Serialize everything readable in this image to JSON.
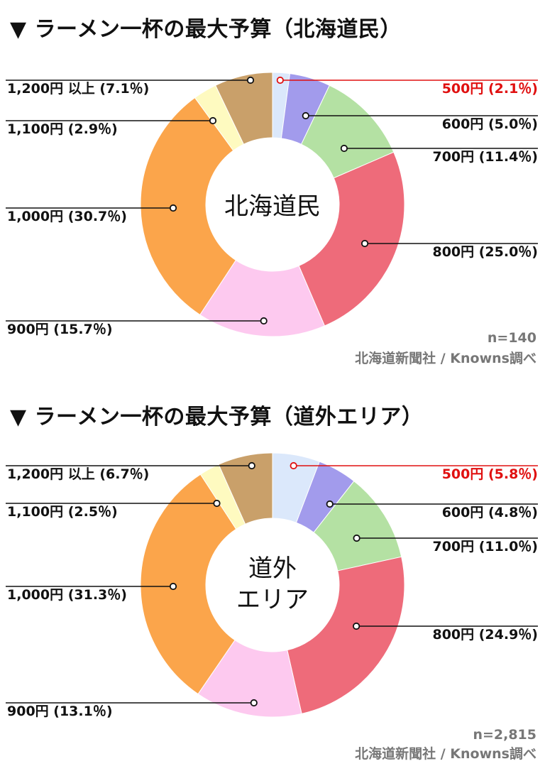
{
  "charts": [
    {
      "title": "▼ ラーメン一杯の最大予算（北海道民）",
      "center_lines": [
        "北海道民"
      ],
      "sample_size": "n=140",
      "source": "北海道新聞社 / Knowns調べ"
    },
    {
      "title": "▼ ラーメン一杯の最大予算（道外エリア）",
      "center_lines": [
        "道外",
        "エリア"
      ],
      "sample_size": "n=2,815",
      "source": "北海道新聞社 / Knowns調べ"
    }
  ],
  "chart_data": [
    {
      "type": "pie",
      "variant": "donut",
      "title": "▼ ラーメン一杯の最大予算（北海道民）",
      "center_label": "北海道民",
      "start": "12 o'clock, clockwise",
      "highlight_color": "#e01010",
      "slices": [
        {
          "category": "500円",
          "value": 2.1,
          "label": "500円 (2.1％)",
          "color": "#dbe8fb",
          "highlight": true
        },
        {
          "category": "600円",
          "value": 5.0,
          "label": "600円 (5.0％)",
          "color": "#a29bec"
        },
        {
          "category": "700円",
          "value": 11.4,
          "label": "700円 (11.4％)",
          "color": "#b4e1a3"
        },
        {
          "category": "800円",
          "value": 25.0,
          "label": "800円 (25.0％)",
          "color": "#ee6b7a"
        },
        {
          "category": "900円",
          "value": 15.7,
          "label": "900円 (15.7％)",
          "color": "#fdc9ef"
        },
        {
          "category": "1,000円",
          "value": 30.7,
          "label": "1,000円 (30.7％)",
          "color": "#fba54b"
        },
        {
          "category": "1,100円",
          "value": 2.9,
          "label": "1,100円 (2.9％)",
          "color": "#fefac0"
        },
        {
          "category": "1,200円 以上",
          "value": 7.1,
          "label": "1,200円 以上 (7.1％)",
          "color": "#c9a06a"
        }
      ],
      "annotations": [
        "n=140",
        "北海道新聞社 / Knowns調べ"
      ]
    },
    {
      "type": "pie",
      "variant": "donut",
      "title": "▼ ラーメン一杯の最大予算（道外エリア）",
      "center_label": "道外 エリア",
      "start": "12 o'clock, clockwise",
      "highlight_color": "#e01010",
      "slices": [
        {
          "category": "500円",
          "value": 5.8,
          "label": "500円 (5.8％)",
          "color": "#dbe8fb",
          "highlight": true
        },
        {
          "category": "600円",
          "value": 4.8,
          "label": "600円 (4.8％)",
          "color": "#a29bec"
        },
        {
          "category": "700円",
          "value": 11.0,
          "label": "700円 (11.0％)",
          "color": "#b4e1a3"
        },
        {
          "category": "800円",
          "value": 24.9,
          "label": "800円 (24.9％)",
          "color": "#ee6b7a"
        },
        {
          "category": "900円",
          "value": 13.1,
          "label": "900円 (13.1％)",
          "color": "#fdc9ef"
        },
        {
          "category": "1,000円",
          "value": 31.3,
          "label": "1,000円 (31.3％)",
          "color": "#fba54b"
        },
        {
          "category": "1,100円",
          "value": 2.5,
          "label": "1,100円 (2.5％)",
          "color": "#fefac0"
        },
        {
          "category": "1,200円 以上",
          "value": 6.7,
          "label": "1,200円 以上 (6.7％)",
          "color": "#c9a06a"
        }
      ],
      "annotations": [
        "n=2,815",
        "北海道新聞社 / Knowns調べ"
      ]
    }
  ]
}
